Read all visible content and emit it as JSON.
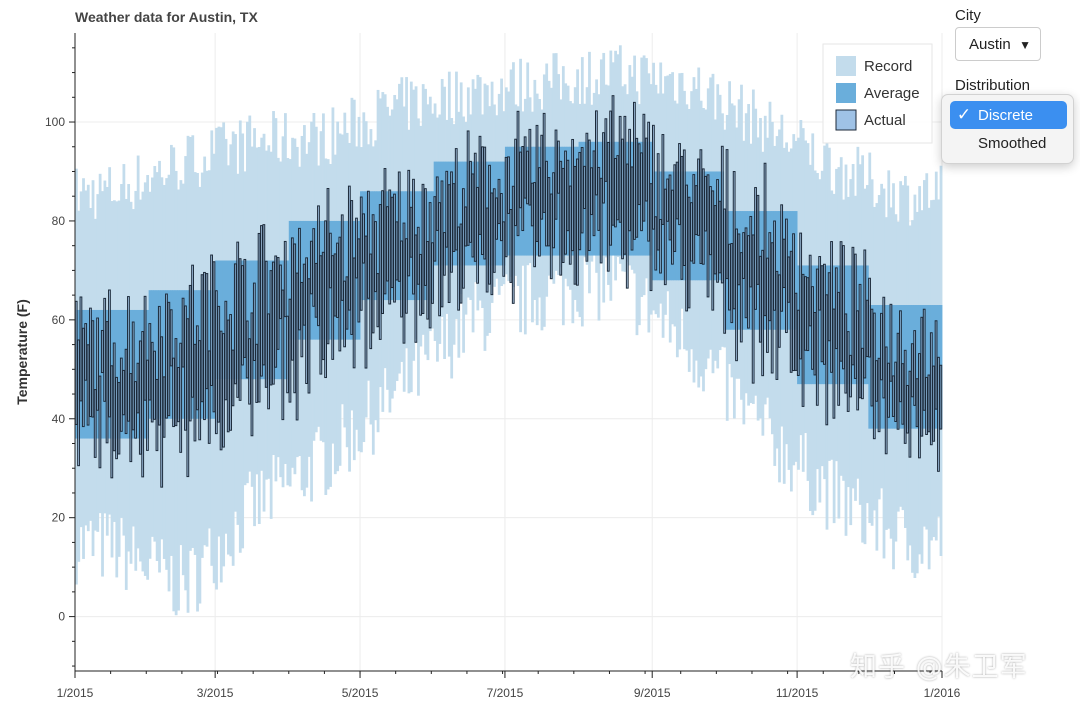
{
  "controls": {
    "city_label": "City",
    "city_value": "Austin",
    "distribution_label": "Distribution",
    "distribution_options": [
      "Discrete",
      "Smoothed"
    ],
    "distribution_selected": "Discrete"
  },
  "watermark": "知乎 @朱卫军",
  "chart_data": {
    "type": "bar",
    "title": "Weather data for Austin, TX",
    "ylabel": "Temperature (F)",
    "xlabel": "",
    "ylim": [
      -11,
      118
    ],
    "yticks": [
      0,
      20,
      40,
      60,
      80,
      100
    ],
    "xlim": [
      "2015-01-01",
      "2016-01-01"
    ],
    "xticks": [
      "1/2015",
      "3/2015",
      "5/2015",
      "7/2015",
      "9/2015",
      "11/2015",
      "1/2016"
    ],
    "grid": true,
    "legend_position": "top-right",
    "legend": [
      "Record",
      "Average",
      "Actual"
    ],
    "series_colors": {
      "Record": "#c3dcec",
      "Average": "#6aaedb",
      "Actual": "#9fc2e6",
      "Actual_edge": "#1c2a3a"
    },
    "monthly": {
      "months": [
        "1/2015",
        "2/2015",
        "3/2015",
        "4/2015",
        "5/2015",
        "6/2015",
        "7/2015",
        "8/2015",
        "9/2015",
        "10/2015",
        "11/2015",
        "12/2015"
      ],
      "record_min": [
        14,
        6,
        22,
        32,
        45,
        60,
        65,
        68,
        55,
        38,
        24,
        15
      ],
      "record_max": [
        86,
        92,
        96,
        97,
        103,
        106,
        108,
        110,
        108,
        100,
        91,
        85
      ],
      "average_min": [
        36,
        40,
        48,
        56,
        64,
        71,
        73,
        73,
        68,
        58,
        47,
        38
      ],
      "average_max": [
        62,
        66,
        72,
        80,
        86,
        92,
        95,
        96,
        90,
        82,
        71,
        63
      ],
      "actual_min": [
        36,
        37,
        43,
        53,
        62,
        70,
        74,
        76,
        70,
        57,
        47,
        39
      ],
      "actual_max": [
        57,
        63,
        70,
        78,
        83,
        89,
        94,
        98,
        90,
        81,
        68,
        58
      ]
    }
  }
}
